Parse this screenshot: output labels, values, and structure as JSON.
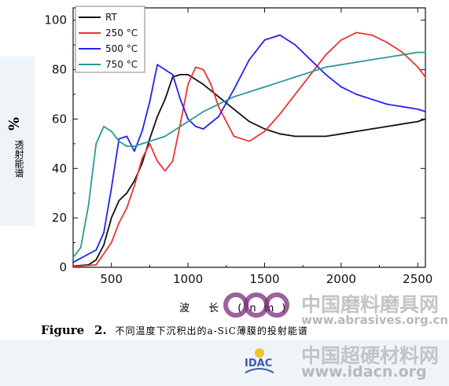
{
  "chart_data": {
    "type": "line",
    "title": "",
    "xlabel": "波 长 (nm)",
    "ylabel_symbol": "%",
    "ylabel_text": "透射能谱",
    "xlim": [
      250,
      2550
    ],
    "ylim": [
      0,
      105
    ],
    "xticks": [
      500,
      1000,
      1500,
      2000,
      2500
    ],
    "yticks": [
      0,
      20,
      40,
      60,
      80,
      100
    ],
    "grid": false,
    "legend_position": "top-left",
    "series": [
      {
        "name": "RT",
        "color": "#111111",
        "x": [
          250,
          350,
          400,
          450,
          500,
          550,
          600,
          650,
          700,
          750,
          800,
          850,
          900,
          950,
          1000,
          1100,
          1200,
          1300,
          1400,
          1500,
          1600,
          1700,
          1800,
          1900,
          2000,
          2100,
          2200,
          2300,
          2400,
          2500,
          2550
        ],
        "y": [
          0.5,
          1,
          3,
          9,
          20,
          27,
          30,
          35,
          42,
          52,
          61,
          68,
          77,
          78,
          78,
          74,
          69,
          64,
          59,
          56,
          54,
          53,
          53,
          53,
          54,
          55,
          56,
          57,
          58,
          59,
          60
        ]
      },
      {
        "name": "250 °C",
        "color": "#ee3333",
        "x": [
          250,
          400,
          500,
          550,
          600,
          650,
          700,
          750,
          800,
          850,
          900,
          950,
          1000,
          1050,
          1100,
          1150,
          1200,
          1300,
          1400,
          1500,
          1600,
          1700,
          1800,
          1900,
          2000,
          2100,
          2200,
          2300,
          2400,
          2500,
          2550
        ],
        "y": [
          0.3,
          1,
          10,
          18,
          24,
          33,
          44,
          50,
          43,
          39,
          43,
          58,
          74,
          81,
          80,
          74,
          65,
          53,
          51,
          55,
          62,
          70,
          78,
          86,
          92,
          95,
          94,
          91,
          87,
          81,
          77
        ]
      },
      {
        "name": "500 °C",
        "color": "#2222ee",
        "x": [
          250,
          400,
          450,
          500,
          550,
          600,
          650,
          700,
          750,
          800,
          850,
          900,
          950,
          1000,
          1050,
          1100,
          1200,
          1300,
          1400,
          1500,
          1600,
          1700,
          1800,
          1900,
          2000,
          2100,
          2200,
          2300,
          2400,
          2500,
          2550
        ],
        "y": [
          2,
          7,
          14,
          32,
          52,
          53,
          47,
          55,
          67,
          82,
          80,
          78,
          68,
          60,
          57,
          56,
          61,
          72,
          84,
          92,
          94,
          90,
          84,
          78,
          73,
          70,
          68,
          66,
          65,
          64,
          63
        ]
      },
      {
        "name": "750 °C",
        "color": "#2a9a96",
        "x": [
          250,
          300,
          350,
          400,
          450,
          500,
          550,
          600,
          650,
          700,
          750,
          800,
          850,
          900,
          1000,
          1100,
          1200,
          1300,
          1400,
          1500,
          1600,
          1700,
          1800,
          1900,
          2000,
          2100,
          2200,
          2300,
          2400,
          2500,
          2550
        ],
        "y": [
          4,
          8,
          25,
          50,
          57,
          55,
          51,
          49,
          49,
          50,
          51,
          52,
          53,
          55,
          59,
          63,
          66,
          69,
          71,
          73,
          75,
          77,
          79,
          81,
          82,
          83,
          84,
          85,
          86,
          87,
          87
        ]
      }
    ]
  },
  "caption": {
    "label": "Figure",
    "number": "2.",
    "text": "不同温度下沉积出的a-SiC薄膜的投射能谱"
  },
  "watermarks": {
    "line1": "中国磨料磨具网",
    "line2": "www.abrasives.org.cn",
    "line3": "中国超硬材料网",
    "line4": "www.idacn.org",
    "logo": "IDAC"
  },
  "colors": {
    "axis": "#111111",
    "panel": "#eef4f8"
  }
}
